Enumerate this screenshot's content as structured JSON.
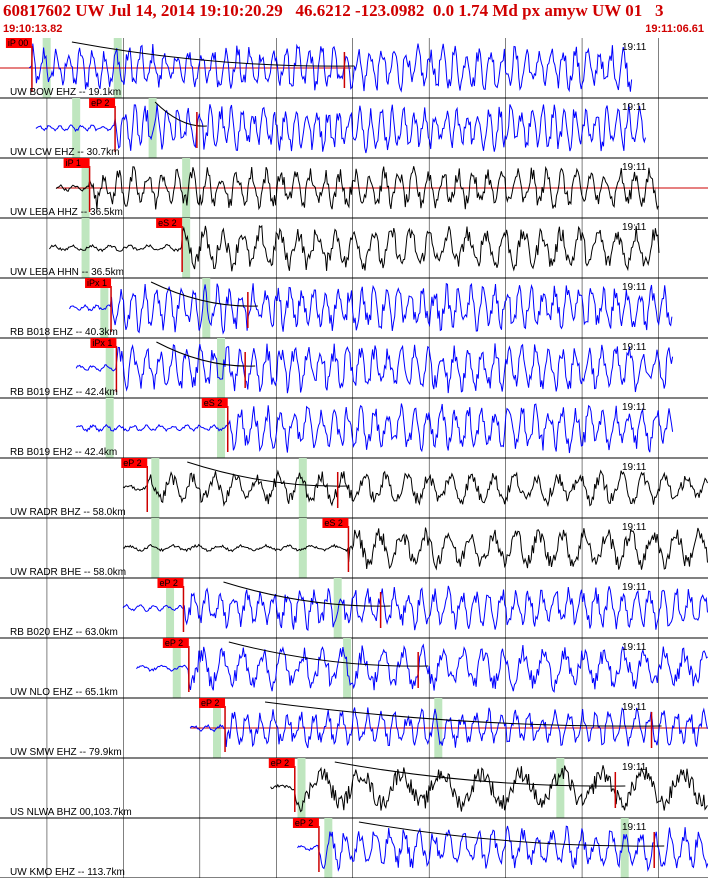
{
  "header": {
    "title": "60817602 UW Jul 14, 2014 19:10:20.29   46.6212 -123.0982  0.0 1.74 Md px amyw UW 01   3",
    "time_start": "19:10:13.82",
    "time_end": "19:11:06.61"
  },
  "colors": {
    "title": "#d00000",
    "pick_box": "#ff0000",
    "pick_line": "#cc0000",
    "green_band": "#bfe6bf",
    "grid": "#000000",
    "blue_trace": "#0000ff",
    "black_trace": "#000000",
    "curve": "#000000"
  },
  "time_axis": {
    "start_s": 13.82,
    "end_s": 66.61
  },
  "traces": [
    {
      "label": "UW BOW EHZ -- 19.1km",
      "time": "19:11",
      "color": "#0000ff",
      "pick": "iP 00",
      "pick_s": 16.2,
      "s_s": 39.5,
      "onset_s": 16.0,
      "end_s": 61.0,
      "amp": 0.85,
      "period_s": 0.9,
      "bands_s": [
        17.3,
        22.6
      ],
      "curve": true,
      "hline": true,
      "hline_end_s": 40.0
    },
    {
      "label": "UW LCW EHZ -- 30.7km",
      "time": "19:11",
      "color": "#0000ff",
      "pick": "eP 2",
      "pick_s": 22.4,
      "s_s": 28.5,
      "onset_s": 16.5,
      "end_s": 62.0,
      "amp": 0.85,
      "period_s": 0.8,
      "bands_s": [
        19.5,
        25.2
      ],
      "curve": true,
      "hline": false
    },
    {
      "label": "UW LEBA HHZ -- 36.5km",
      "time": "19:11",
      "color": "#000000",
      "pick": "iP 1",
      "pick_s": 20.5,
      "s_s": 0,
      "onset_s": 18.0,
      "end_s": 63.0,
      "amp": 0.75,
      "period_s": 1.1,
      "bands_s": [
        20.2,
        27.7
      ],
      "curve": false,
      "hline": true,
      "hline_end_s": 66.61
    },
    {
      "label": "UW LEBA HHN -- 36.5km",
      "time": "19:11",
      "color": "#000000",
      "pick": "eS 2",
      "pick_s": 27.4,
      "s_s": 0,
      "onset_s": 17.5,
      "end_s": 63.0,
      "amp": 0.8,
      "period_s": 1.4,
      "bands_s": [
        20.2,
        27.7
      ],
      "curve": false,
      "hline": false
    },
    {
      "label": "RB B018 EHZ -- 40.3km",
      "time": "19:11",
      "color": "#0000ff",
      "pick": "iPx 1",
      "pick_s": 22.1,
      "s_s": 32.3,
      "onset_s": 19.0,
      "end_s": 64.0,
      "amp": 0.85,
      "period_s": 0.9,
      "bands_s": [
        21.6,
        29.2
      ],
      "curve": true,
      "hline": false
    },
    {
      "label": "RB B019 EHZ -- 42.4km",
      "time": "19:11",
      "color": "#0000ff",
      "pick": "iPx 1",
      "pick_s": 22.5,
      "s_s": 32.1,
      "onset_s": 19.5,
      "end_s": 64.0,
      "amp": 0.85,
      "period_s": 1.0,
      "bands_s": [
        22.0,
        30.3
      ],
      "curve": true,
      "hline": false
    },
    {
      "label": "RB B019 EH2 -- 42.4km",
      "time": "19:11",
      "color": "#0000ff",
      "pick": "eS 2",
      "pick_s": 30.8,
      "s_s": 0,
      "onset_s": 19.5,
      "end_s": 64.0,
      "amp": 0.85,
      "period_s": 1.0,
      "bands_s": [
        22.0,
        30.3
      ],
      "curve": false,
      "hline": false
    },
    {
      "label": "UW RADR BHZ -- 58.0km",
      "time": "19:11",
      "color": "#000000",
      "pick": "eP 2",
      "pick_s": 24.8,
      "s_s": 39.0,
      "onset_s": 23.0,
      "end_s": 68.0,
      "amp": 0.6,
      "period_s": 1.6,
      "bands_s": [
        25.4,
        36.4
      ],
      "curve": true,
      "hline": false
    },
    {
      "label": "UW RADR BHE -- 58.0km",
      "time": "19:11",
      "color": "#000000",
      "pick": "eS 2",
      "pick_s": 39.8,
      "s_s": 0,
      "onset_s": 23.0,
      "end_s": 68.0,
      "amp": 0.75,
      "period_s": 1.7,
      "bands_s": [
        25.4,
        36.4
      ],
      "curve": false,
      "hline": false
    },
    {
      "label": "RB B020 EHZ -- 63.0km",
      "time": "19:11",
      "color": "#0000ff",
      "pick": "eP 2",
      "pick_s": 27.5,
      "s_s": 42.2,
      "onset_s": 23.0,
      "end_s": 68.0,
      "amp": 0.75,
      "period_s": 1.0,
      "bands_s": [
        26.5,
        39.0
      ],
      "curve": true,
      "hline": false
    },
    {
      "label": "UW NLO EHZ -- 65.1km",
      "time": "19:11",
      "color": "#0000ff",
      "pick": "eP 2",
      "pick_s": 27.9,
      "s_s": 45.0,
      "onset_s": 24.0,
      "end_s": 69.0,
      "amp": 0.8,
      "period_s": 1.5,
      "bands_s": [
        27.0,
        39.7
      ],
      "curve": true,
      "hline": false
    },
    {
      "label": "UW SMW EHZ -- 79.9km",
      "time": "19:11",
      "color": "#0000ff",
      "pick": "eP 2",
      "pick_s": 30.6,
      "s_s": 62.4,
      "onset_s": 28.0,
      "end_s": 73.0,
      "amp": 0.7,
      "period_s": 1.0,
      "bands_s": [
        30.0,
        46.5
      ],
      "curve": true,
      "hline": true,
      "hline_end_s": 70.0
    },
    {
      "label": "US NLWA BHZ 00,103.7km",
      "time": "19:11",
      "color": "#000000",
      "pick": "eP 2",
      "pick_s": 35.8,
      "s_s": 59.7,
      "onset_s": 34.0,
      "end_s": 78.0,
      "amp": 0.8,
      "period_s": 3.0,
      "bands_s": [
        36.3,
        55.6
      ],
      "curve": true,
      "hline": false
    },
    {
      "label": "UW KMO EHZ -- 113.7km",
      "time": "19:11",
      "color": "#0000ff",
      "pick": "eP 2",
      "pick_s": 37.6,
      "s_s": 62.6,
      "onset_s": 36.0,
      "end_s": 82.0,
      "amp": 0.75,
      "period_s": 1.1,
      "bands_s": [
        38.3,
        60.4
      ],
      "curve": true,
      "hline": false
    }
  ]
}
